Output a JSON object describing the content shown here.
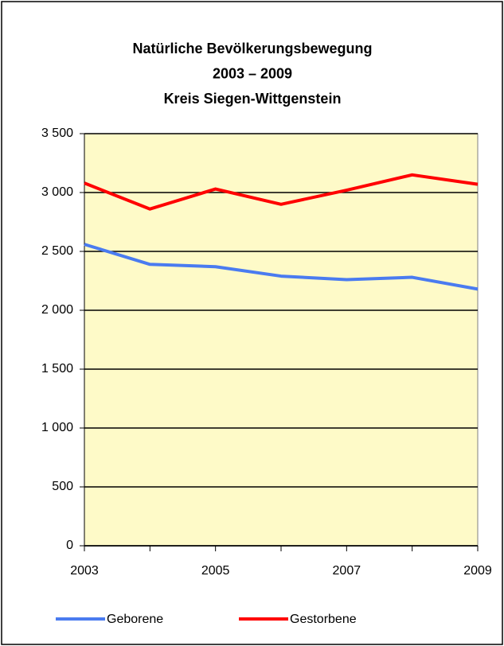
{
  "chart_data": {
    "type": "line",
    "title": [
      "Natürliche Bevölkerungsbewegung",
      "2003 – 2009",
      "Kreis Siegen-Wittgenstein"
    ],
    "x": [
      2003,
      2004,
      2005,
      2006,
      2007,
      2008,
      2009
    ],
    "xlim": [
      2003,
      2009
    ],
    "xticks": [
      2003,
      2005,
      2007,
      2009
    ],
    "ylim": [
      0,
      3500
    ],
    "yticks": [
      0,
      500,
      {
        "value": 1000,
        "label": "1 000"
      },
      {
        "value": 1500,
        "label": "1 500"
      },
      {
        "value": 2000,
        "label": "2 000"
      },
      {
        "value": 2500,
        "label": "2 500"
      },
      {
        "value": 3000,
        "label": "3 000"
      },
      {
        "value": 3500,
        "label": "3 500"
      }
    ],
    "grid": true,
    "legend": "bottom",
    "plot_background": "#fefac8",
    "series": [
      {
        "name": "Geborene",
        "color": "#4a7bf0",
        "values": [
          2560,
          2390,
          2370,
          2290,
          2260,
          2280,
          2180
        ]
      },
      {
        "name": "Gestorbene",
        "color": "#ff0000",
        "values": [
          3080,
          2860,
          3030,
          2900,
          3020,
          3150,
          3070
        ]
      }
    ]
  }
}
